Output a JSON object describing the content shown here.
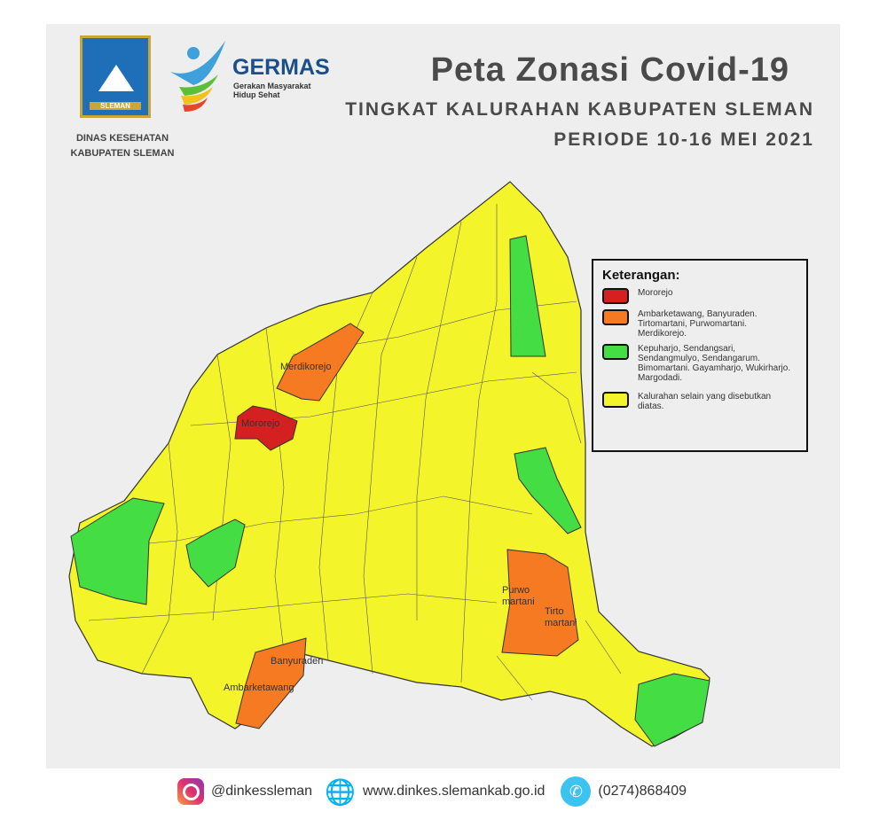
{
  "header": {
    "title": "Peta Zonasi Covid-19",
    "subtitle": "TINGKAT KALURAHAN KABUPATEN SLEMAN",
    "period": "PERIODE 10-16 MEI 2021"
  },
  "logos": {
    "sleman_text": "SLEMAN",
    "germas_title": "GERMAS",
    "germas_line1": "Gerakan Masyarakat",
    "germas_line2": "Hidup Sehat",
    "dept_line1": "DINAS KESEHATAN",
    "dept_line2": "KABUPATEN SLEMAN"
  },
  "colors": {
    "red": "#d42020",
    "orange": "#f57a22",
    "green": "#44dd44",
    "yellow": "#f4f42a"
  },
  "legend": {
    "title": "Keterangan:",
    "items": [
      {
        "color": "#d42020",
        "text": "Mororejo"
      },
      {
        "color": "#f57a22",
        "text": "Ambarketawang, Banyuraden. Tirtomartani, Purwomartani. Merdikorejo."
      },
      {
        "color": "#44dd44",
        "text": "Kepuharjo, Sendangsari, Sendangmulyo, Sendangarum. Bimomartani. Gayamharjo, Wukirharjo. Margodadi."
      },
      {
        "color": "#f4f42a",
        "text": "Kalurahan selain yang disebutkan diatas."
      }
    ]
  },
  "map_labels": {
    "merdikorejo": "Merdikorejo",
    "mororejo": "Mororejo",
    "purwo1": "Purwo",
    "purwo2": "martani",
    "tirto1": "Tirto",
    "tirto2": "martani",
    "banyuraden": "Banyuraden",
    "ambarketawang": "Ambarketawang"
  },
  "footer": {
    "instagram": "@dinkessleman",
    "website": "www.dinkes.slemankab.go.id",
    "phone": "(0274)868409"
  }
}
